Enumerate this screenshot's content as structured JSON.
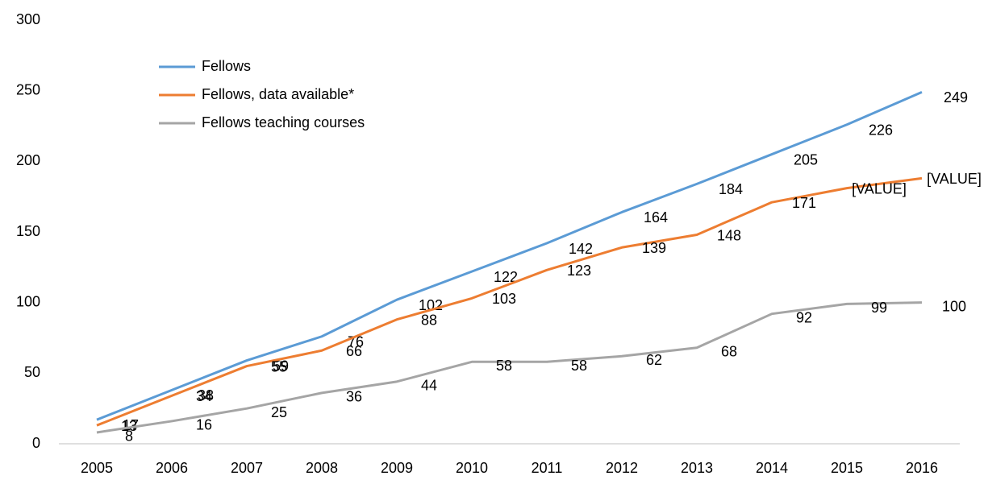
{
  "chart_data": {
    "type": "line",
    "categories": [
      "2005",
      "2006",
      "2007",
      "2008",
      "2009",
      "2010",
      "2011",
      "2012",
      "2013",
      "2014",
      "2015",
      "2016"
    ],
    "series": [
      {
        "name": "Fellows",
        "color": "#5b9bd5",
        "values": [
          17,
          38,
          59,
          76,
          102,
          122,
          142,
          164,
          184,
          205,
          226,
          249
        ]
      },
      {
        "name": "Fellows, data available*",
        "color": "#ed7d31",
        "values": [
          13,
          34,
          55,
          66,
          88,
          103,
          123,
          139,
          148,
          171,
          181,
          188
        ],
        "value_labels": [
          "13",
          "34",
          "55",
          "66",
          "88",
          "103",
          "123",
          "139",
          "148",
          "171",
          "[VALUE]",
          "[VALUE]"
        ]
      },
      {
        "name": "Fellows teaching courses",
        "color": "#a5a5a5",
        "values": [
          8,
          16,
          25,
          36,
          44,
          58,
          58,
          62,
          68,
          92,
          99,
          100
        ]
      }
    ],
    "ylim": [
      0,
      300
    ],
    "yticks": [
      0,
      50,
      100,
      150,
      200,
      250,
      300
    ],
    "grid": false,
    "legend": "top-left"
  }
}
